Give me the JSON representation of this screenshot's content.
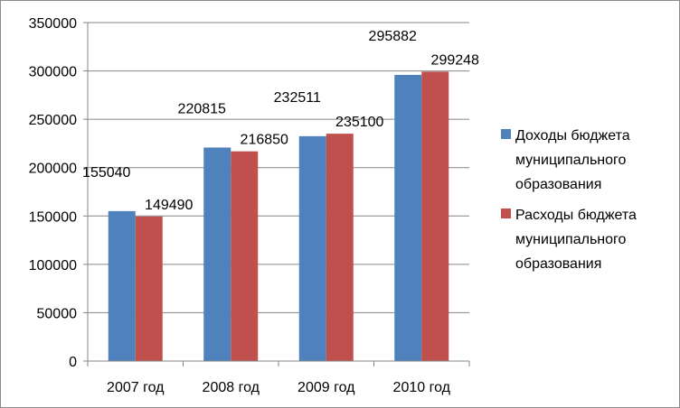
{
  "chart_data": {
    "type": "bar",
    "categories": [
      "2007 год",
      "2008 год",
      "2009 год",
      "2010 год"
    ],
    "series": [
      {
        "name": "Доходы бюджета муниципального образования",
        "legend_lines": [
          "Доходы бюджета",
          "муниципального",
          "образования"
        ],
        "values": [
          155040,
          220815,
          232511,
          295882
        ],
        "color": "#4f81bd"
      },
      {
        "name": "Расходы бюджета муниципального образования",
        "legend_lines": [
          "Расходы бюджета",
          "муниципального",
          "образования"
        ],
        "values": [
          149490,
          216850,
          235100,
          299248
        ],
        "color": "#c0504d"
      }
    ],
    "yticks": [
      0,
      50000,
      100000,
      150000,
      200000,
      250000,
      300000,
      350000
    ],
    "ylim": [
      0,
      350000
    ],
    "gridlines": true,
    "legend_position": "right",
    "title": "",
    "xlabel": "",
    "ylabel": ""
  }
}
